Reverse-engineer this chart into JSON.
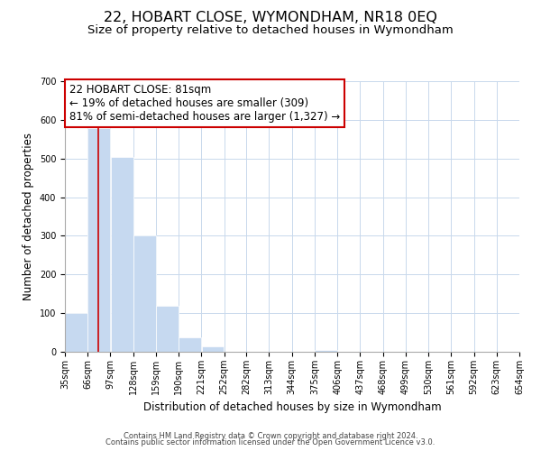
{
  "title": "22, HOBART CLOSE, WYMONDHAM, NR18 0EQ",
  "subtitle": "Size of property relative to detached houses in Wymondham",
  "xlabel": "Distribution of detached houses by size in Wymondham",
  "ylabel": "Number of detached properties",
  "bin_edges": [
    35,
    66,
    97,
    128,
    159,
    190,
    221,
    252,
    282,
    313,
    344,
    375,
    406,
    437,
    468,
    499,
    530,
    561,
    592,
    623,
    654
  ],
  "bin_labels": [
    "35sqm",
    "66sqm",
    "97sqm",
    "128sqm",
    "159sqm",
    "190sqm",
    "221sqm",
    "252sqm",
    "282sqm",
    "313sqm",
    "344sqm",
    "375sqm",
    "406sqm",
    "437sqm",
    "468sqm",
    "499sqm",
    "530sqm",
    "561sqm",
    "592sqm",
    "623sqm",
    "654sqm"
  ],
  "counts": [
    100,
    578,
    505,
    300,
    119,
    38,
    15,
    0,
    0,
    0,
    0,
    5,
    0,
    0,
    0,
    0,
    0,
    0,
    0,
    0
  ],
  "bar_color": "#c6d9f0",
  "vline_x": 81,
  "vline_color": "#cc0000",
  "annotation_text": "22 HOBART CLOSE: 81sqm\n← 19% of detached houses are smaller (309)\n81% of semi-detached houses are larger (1,327) →",
  "annotation_box_color": "#ffffff",
  "annotation_box_edge": "#cc0000",
  "ylim": [
    0,
    700
  ],
  "yticks": [
    0,
    100,
    200,
    300,
    400,
    500,
    600,
    700
  ],
  "footer_line1": "Contains HM Land Registry data © Crown copyright and database right 2024.",
  "footer_line2": "Contains public sector information licensed under the Open Government Licence v3.0.",
  "background_color": "#ffffff",
  "grid_color": "#c8d8ec",
  "title_fontsize": 11.5,
  "subtitle_fontsize": 9.5,
  "axis_label_fontsize": 8.5,
  "tick_fontsize": 7,
  "annotation_fontsize": 8.5,
  "footer_fontsize": 6
}
